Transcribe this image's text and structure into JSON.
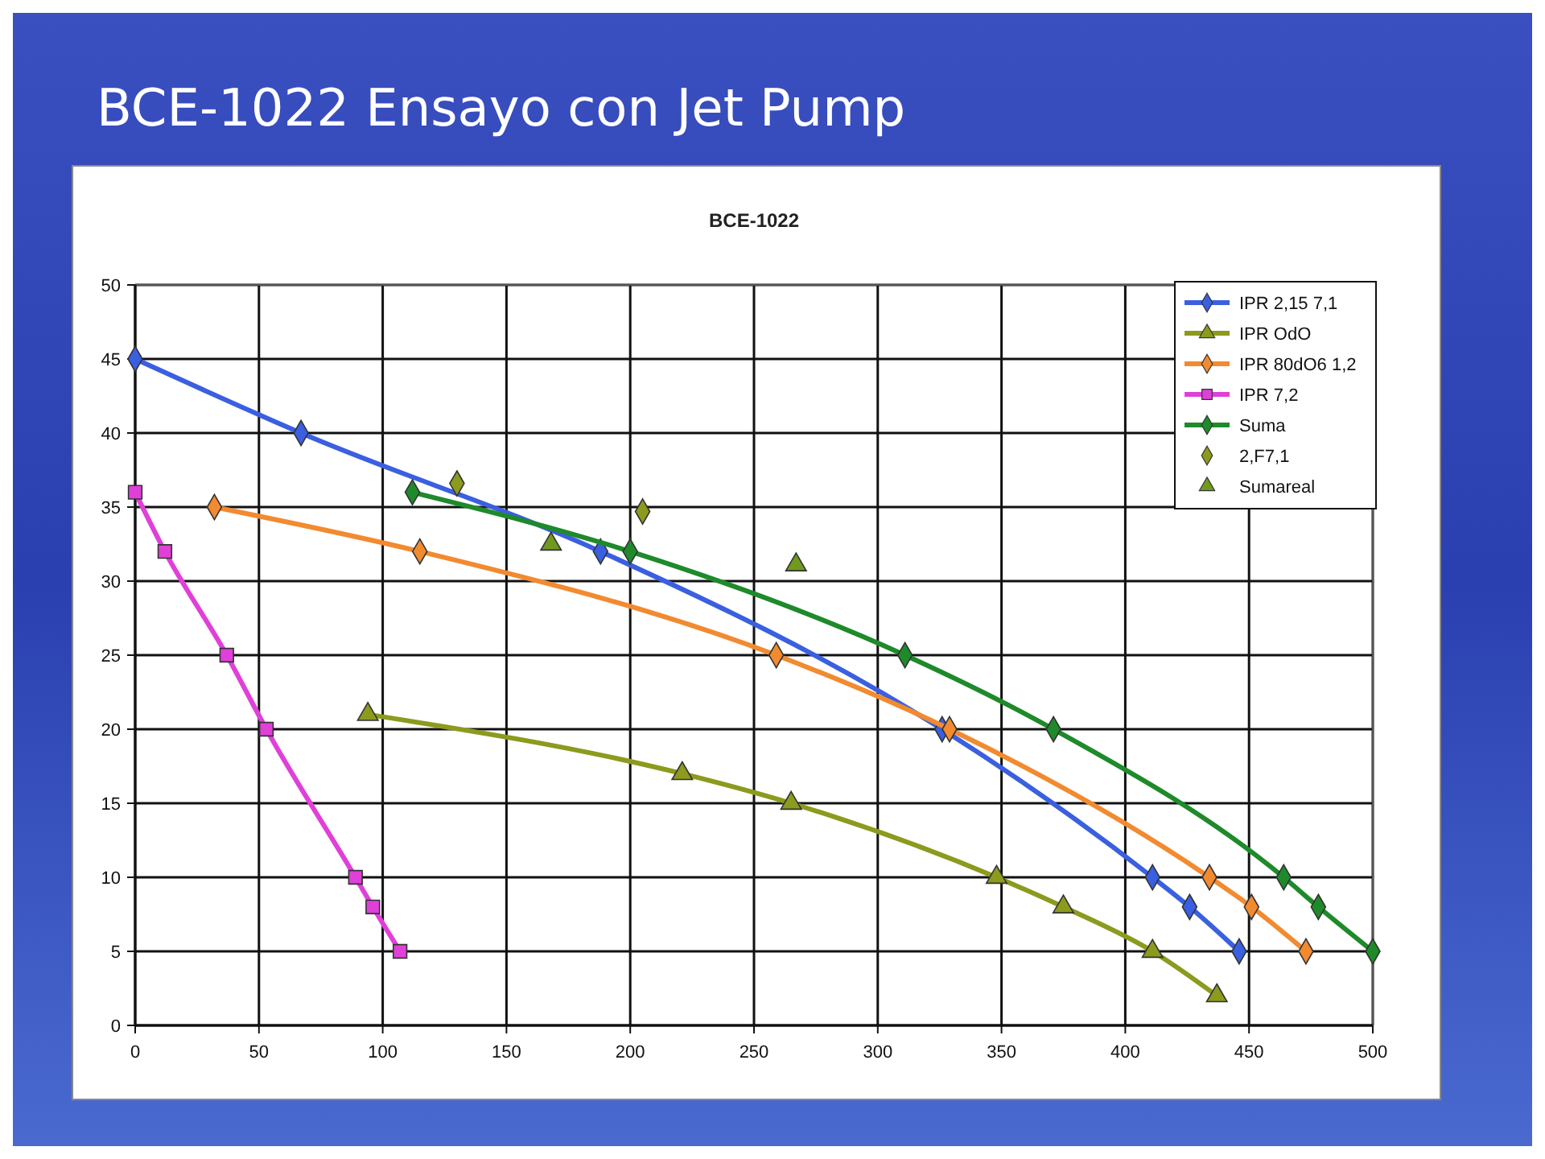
{
  "chart_data": {
    "type": "line",
    "title": "BCE-1022 Ensayo con Jet Pump",
    "subtitle": "BCE-1022",
    "xlim": [
      0,
      500
    ],
    "xticks": [
      0,
      50,
      100,
      150,
      200,
      250,
      300,
      350,
      400,
      450,
      500
    ],
    "ylim": [
      0,
      50
    ],
    "yticks": [
      0,
      5,
      10,
      15,
      20,
      25,
      30,
      35,
      40,
      45,
      50
    ],
    "grid": true,
    "legend": "top right",
    "series": [
      {
        "name": "IPR 2,15 7,1",
        "color": "#3a5fe0",
        "marker": "diamond",
        "x": [
          0,
          67,
          188,
          326,
          411,
          426,
          446
        ],
        "values": [
          45,
          40,
          32,
          20,
          10,
          8,
          5
        ]
      },
      {
        "name": "IPR OdO",
        "color": "#8c9a1e",
        "marker": "triangle",
        "x": [
          94,
          221,
          265,
          348,
          375,
          411,
          437
        ],
        "values": [
          21,
          17,
          15,
          10,
          8,
          5,
          2
        ]
      },
      {
        "name": "IPR 80dO6 1,2",
        "color": "#f28a30",
        "marker": "diamond",
        "x": [
          32,
          115,
          259,
          329,
          434,
          451,
          473
        ],
        "values": [
          35,
          32,
          25,
          20,
          10,
          8,
          5
        ]
      },
      {
        "name": "IPR 7,2",
        "color": "#e040d8",
        "marker": "square",
        "x": [
          0,
          12,
          37,
          53,
          89,
          96,
          107
        ],
        "values": [
          36,
          32,
          25,
          20,
          10,
          8,
          5
        ]
      },
      {
        "name": "Suma",
        "color": "#1e8a2a",
        "marker": "diamond",
        "x": [
          112,
          200,
          311,
          371,
          464,
          478,
          500
        ],
        "values": [
          36,
          32,
          25,
          20,
          10,
          8,
          5
        ]
      },
      {
        "name": "2,F7,1",
        "type": "scatter",
        "color": "#8c9a1e",
        "marker": "diamond",
        "x": [
          130,
          205
        ],
        "values": [
          36.6,
          34.7
        ]
      },
      {
        "name": "Sumareal",
        "type": "scatter",
        "color": "#6f9a1e",
        "marker": "triangle",
        "x": [
          168,
          267
        ],
        "values": [
          32.5,
          31.1
        ]
      }
    ]
  }
}
